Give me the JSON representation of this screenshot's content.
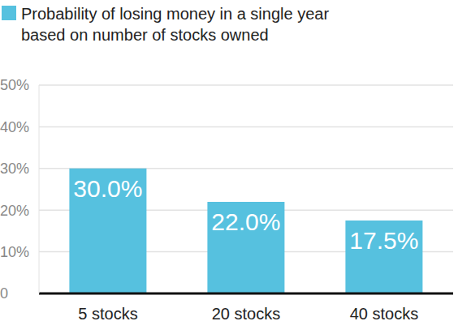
{
  "chart_data": {
    "type": "bar",
    "categories": [
      "5 stocks",
      "20 stocks",
      "40 stocks"
    ],
    "series": [
      {
        "name": "Probability of losing money in a single year based on number of stocks owned",
        "color": "#56c1df",
        "values": [
          30.0,
          22.0,
          17.5
        ],
        "value_labels": [
          "30.0%",
          "22.0%",
          "17.5%"
        ]
      }
    ],
    "ylim": [
      0,
      50
    ],
    "yticks": [
      0,
      {
        "value": 10,
        "label": "10%"
      },
      {
        "value": 20,
        "label": "20%"
      },
      {
        "value": 30,
        "label": "30%"
      },
      {
        "value": 40,
        "label": "40%"
      },
      {
        "value": 50,
        "label": "50%"
      }
    ],
    "grid": true,
    "legend": "top-left",
    "data_labels": true
  }
}
